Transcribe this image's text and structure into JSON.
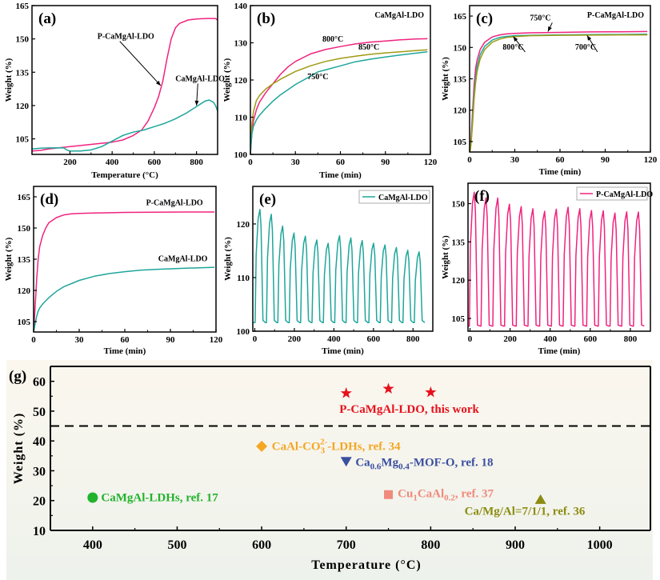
{
  "colors": {
    "pink": "#f0237e",
    "teal": "#1fa69b",
    "olive": "#a09a14",
    "red": "#e8101c",
    "orange": "#f4a624",
    "blue": "#3a4fa0",
    "salmon": "#f08a7c",
    "green": "#22b32c",
    "darkolive": "#8c8c10",
    "g_bg_top": "#fbf7ee",
    "g_bg_bottom": "#eef2ec"
  },
  "chart_data": [
    {
      "id": "a",
      "type": "line",
      "panel_label": "(a)",
      "xlabel": "Temperature (°C)",
      "ylabel": "Weight (%)",
      "xlim": [
        20,
        900
      ],
      "ylim": [
        98,
        165
      ],
      "xticks": [
        200,
        400,
        600,
        800
      ],
      "yticks": [
        105,
        120,
        135,
        150,
        165
      ],
      "series": [
        {
          "name": "P-CaMgAl-LDO",
          "color": "pink",
          "x": [
            20,
            60,
            100,
            200,
            300,
            400,
            450,
            500,
            540,
            570,
            600,
            620,
            640,
            660,
            680,
            700,
            720,
            760,
            800,
            850,
            890,
            900
          ],
          "y": [
            99.5,
            99.8,
            100.5,
            101.5,
            102.5,
            103.5,
            104.5,
            106.5,
            109,
            113,
            119,
            124,
            131,
            141,
            150,
            155,
            157,
            158.5,
            159,
            159.2,
            159.2,
            158.5
          ]
        },
        {
          "name": "CaMgAl-LDO",
          "color": "teal",
          "x": [
            20,
            60,
            100,
            170,
            185,
            200,
            250,
            300,
            350,
            400,
            450,
            500,
            550,
            600,
            650,
            700,
            750,
            800,
            840,
            860,
            880,
            890,
            900
          ],
          "y": [
            100.5,
            100.8,
            100.9,
            101,
            100,
            99.5,
            99.5,
            100,
            101.5,
            104,
            106.5,
            108,
            109,
            110.5,
            112,
            114,
            116.5,
            119.5,
            122,
            122.5,
            121.5,
            120,
            117.5
          ]
        }
      ],
      "annotations": [
        {
          "text": "P-CaMgAl-LDO",
          "x": 330,
          "y": 150,
          "arrow_to": [
            630,
            129
          ]
        },
        {
          "text": "CaMgAl-LDO",
          "x": 700,
          "y": 131,
          "arrow_to": [
            800,
            120
          ]
        }
      ]
    },
    {
      "id": "b",
      "type": "line",
      "panel_label": "(b)",
      "title": "CaMgAl-LDO",
      "xlabel": "Time (min)",
      "ylabel": "Weight (%)",
      "xlim": [
        0,
        120
      ],
      "ylim": [
        100,
        140
      ],
      "xticks": [
        0,
        30,
        60,
        90,
        120
      ],
      "yticks": [
        100,
        110,
        120,
        130,
        140
      ],
      "series": [
        {
          "name": "800°C",
          "color": "pink",
          "x": [
            0,
            0.5,
            1,
            2,
            4,
            6,
            10,
            15,
            20,
            25,
            30,
            40,
            50,
            60,
            70,
            80,
            90,
            100,
            110,
            118
          ],
          "y": [
            100,
            103,
            106,
            109,
            112,
            114,
            116.5,
            119,
            121.5,
            123.5,
            125,
            127,
            128.2,
            129,
            129.7,
            130.2,
            130.5,
            130.8,
            131,
            131.1
          ]
        },
        {
          "name": "850°C",
          "color": "olive",
          "x": [
            0,
            0.5,
            1,
            2,
            4,
            6,
            10,
            15,
            20,
            30,
            40,
            50,
            60,
            70,
            80,
            90,
            100,
            110,
            118
          ],
          "y": [
            100,
            104,
            108,
            111.5,
            114.5,
            115.8,
            117.5,
            119,
            120.2,
            122.3,
            123.8,
            125,
            125.8,
            126.4,
            126.9,
            127.3,
            127.6,
            127.9,
            128.1
          ]
        },
        {
          "name": "750°C",
          "color": "teal",
          "x": [
            0,
            0.5,
            1,
            2,
            4,
            6,
            10,
            15,
            20,
            30,
            40,
            45,
            50,
            60,
            70,
            80,
            90,
            100,
            110,
            118
          ],
          "y": [
            100,
            103,
            105.5,
            107.5,
            109.3,
            110.5,
            112.3,
            114.3,
            116,
            118.8,
            121,
            122.2,
            122.7,
            123.8,
            124.9,
            125.6,
            126.2,
            126.7,
            127.2,
            127.6
          ]
        }
      ],
      "annotations": [
        {
          "text": "800°C",
          "x": 48,
          "y": 130.3
        },
        {
          "text": "850°C",
          "x": 72,
          "y": 128.2
        },
        {
          "text": "750°C",
          "x": 38,
          "y": 120.2
        }
      ]
    },
    {
      "id": "c",
      "type": "line",
      "panel_label": "(c)",
      "title": "P-CaMgAl-LDO",
      "xlabel": "Time (min)",
      "ylabel": "Weight (%)",
      "xlim": [
        0,
        120
      ],
      "ylim": [
        100,
        170
      ],
      "xticks": [
        0,
        30,
        60,
        90,
        120
      ],
      "yticks": [
        105,
        120,
        135,
        150,
        165
      ],
      "series": [
        {
          "name": "750°C",
          "color": "pink",
          "x": [
            0,
            0.5,
            1,
            2,
            3,
            4,
            5,
            7,
            10,
            15,
            20,
            25,
            30,
            40,
            60,
            80,
            100,
            118
          ],
          "y": [
            100,
            102,
            107,
            120,
            132,
            140,
            144,
            149,
            152.5,
            155,
            156,
            156.5,
            156.7,
            157,
            157.2,
            157.4,
            157.5,
            157.6
          ]
        },
        {
          "name": "800°C",
          "color": "teal",
          "x": [
            0,
            0.5,
            1,
            2,
            3,
            4,
            5,
            7,
            10,
            15,
            20,
            25,
            30,
            40,
            60,
            80,
            100,
            118
          ],
          "y": [
            100,
            101.5,
            105,
            117,
            128,
            136,
            141,
            146.5,
            150.5,
            153.5,
            154.8,
            155.3,
            155.6,
            155.8,
            156,
            156.1,
            156.2,
            156.3
          ]
        },
        {
          "name": "700°C",
          "color": "olive",
          "x": [
            0,
            0.5,
            1,
            2,
            3,
            4,
            5,
            7,
            10,
            15,
            20,
            25,
            30,
            40,
            60,
            80,
            100,
            118
          ],
          "y": [
            100,
            101,
            104,
            114,
            125,
            133,
            138.5,
            144.5,
            149,
            152.5,
            154,
            154.8,
            155.2,
            155.6,
            155.8,
            155.9,
            156,
            156
          ]
        }
      ],
      "annotations": [
        {
          "text": "750°C",
          "x": 40,
          "y": 163,
          "arrow_to": [
            52,
            157.6
          ]
        },
        {
          "text": "800°C",
          "x": 22,
          "y": 149,
          "arrow_to": [
            29,
            155.2
          ]
        },
        {
          "text": "700°C",
          "x": 70,
          "y": 149,
          "arrow_to": [
            78,
            155.7
          ]
        }
      ]
    },
    {
      "id": "d",
      "type": "line",
      "panel_label": "(d)",
      "xlabel": "Time (min)",
      "ylabel": "Weight (%)",
      "xlim": [
        0,
        120
      ],
      "ylim": [
        100,
        170
      ],
      "xticks": [
        0,
        30,
        60,
        90,
        120
      ],
      "yticks": [
        105,
        120,
        135,
        150,
        165
      ],
      "series": [
        {
          "name": "P-CaMgAl-LDO",
          "color": "pink",
          "x": [
            0,
            1,
            2,
            3,
            4,
            6,
            8,
            10,
            15,
            20,
            25,
            30,
            40,
            60,
            80,
            100,
            119
          ],
          "y": [
            100,
            112,
            125,
            135,
            141,
            146.5,
            150,
            152.5,
            155,
            156.3,
            156.8,
            157,
            157.2,
            157.5,
            157.6,
            157.7,
            157.7
          ]
        },
        {
          "name": "CaMgAl-LDO",
          "color": "teal",
          "x": [
            0,
            1,
            2,
            3,
            4,
            6,
            8,
            10,
            15,
            20,
            30,
            40,
            50,
            60,
            70,
            80,
            90,
            100,
            110,
            119
          ],
          "y": [
            100,
            104,
            107.5,
            110,
            111.5,
            113.5,
            115,
            116.5,
            119.5,
            121.8,
            124.8,
            126.8,
            128.1,
            129,
            129.7,
            130.1,
            130.4,
            130.7,
            130.9,
            131.1
          ]
        }
      ],
      "annotations": [
        {
          "text": "P-CaMgAl-LDO",
          "x": 74,
          "y": 161
        },
        {
          "text": "CaMgAl-LDO",
          "x": 82,
          "y": 134
        }
      ]
    },
    {
      "id": "e",
      "type": "line",
      "panel_label": "(e)",
      "xlabel": "Time (min)",
      "ylabel": "Weight (%)",
      "xlim": [
        -10,
        900
      ],
      "ylim": [
        100,
        127
      ],
      "xticks": [
        0,
        200,
        400,
        600,
        800
      ],
      "yticks": [
        100,
        110,
        120
      ],
      "legend": {
        "position": "top-right",
        "entries": [
          "CaMgAl-LDO"
        ]
      },
      "cycle": {
        "period": 57.5,
        "start": 0,
        "base": 101.6,
        "peaks": [
          122.7,
          121.8,
          119.6,
          118.3,
          117.7,
          117.0,
          116.4,
          117.8,
          117.4,
          116.9,
          116.4,
          116.1,
          115.6,
          115.1,
          114.8
        ]
      },
      "series": [
        {
          "name": "CaMgAl-LDO",
          "color": "teal"
        }
      ]
    },
    {
      "id": "f",
      "type": "line",
      "panel_label": "(f)",
      "xlabel": "Time (min)",
      "ylabel": "Weight (%)",
      "xlim": [
        -10,
        900
      ],
      "ylim": [
        100,
        158
      ],
      "xticks": [
        0,
        200,
        400,
        600,
        800
      ],
      "yticks": [
        105,
        120,
        135,
        150
      ],
      "legend": {
        "position": "top-right",
        "entries": [
          "P-CaMgAl-LDO"
        ]
      },
      "cycle": {
        "period": 58.5,
        "start": -5,
        "base": 102,
        "peaks": [
          154.5,
          152.2,
          152.2,
          149.8,
          148.8,
          148.0,
          147.0,
          147.8,
          148.6,
          148.0,
          147.3,
          147.2,
          146.3,
          146.8,
          146.7
        ]
      },
      "series": [
        {
          "name": "P-CaMgAl-LDO",
          "color": "pink"
        }
      ]
    },
    {
      "id": "g",
      "type": "scatter",
      "panel_label": "(g)",
      "xlabel": "Temperature (°C)",
      "ylabel": "Weight (%)",
      "xlim": [
        350,
        1060
      ],
      "ylim": [
        10,
        65
      ],
      "xticks": [
        400,
        500,
        600,
        700,
        800,
        900,
        1000
      ],
      "yticks": [
        10,
        20,
        30,
        40,
        50,
        60
      ],
      "reference_line": {
        "y": 45,
        "style": "dashed"
      },
      "points": [
        {
          "group": "P-CaMgAl-LDO, this work",
          "marker": "star",
          "color": "red",
          "x": 700,
          "y": 56
        },
        {
          "group": "P-CaMgAl-LDO, this work",
          "marker": "star",
          "color": "red",
          "x": 750,
          "y": 57.5
        },
        {
          "group": "P-CaMgAl-LDO, this work",
          "marker": "star",
          "color": "red",
          "x": 800,
          "y": 56.3
        },
        {
          "group": "CaAl-CO3 2- -LDHs, ref. 34",
          "marker": "diamond",
          "color": "orange",
          "x": 600,
          "y": 38.2
        },
        {
          "group": "Ca0.6Mg0.4-MOF-O, ref. 18",
          "marker": "triangle-down",
          "color": "blue",
          "x": 700,
          "y": 33
        },
        {
          "group": "Cu1CaAl0.2, ref. 37",
          "marker": "square",
          "color": "salmon",
          "x": 750,
          "y": 22
        },
        {
          "group": "Ca/Mg/Al=7/1/1, ref. 36",
          "marker": "triangle-up",
          "color": "darkolive",
          "x": 930,
          "y": 20.5
        },
        {
          "group": "CaMgAl-LDHs, ref. 17",
          "marker": "circle",
          "color": "green",
          "x": 400,
          "y": 21
        }
      ],
      "labels": [
        {
          "color": "red",
          "x": 692,
          "y": 49.5,
          "parts": [
            {
              "t": "P-CaMgAl-LDO, this work"
            }
          ]
        },
        {
          "color": "orange",
          "x": 612,
          "y": 37,
          "parts": [
            {
              "t": "CaAl-CO"
            },
            {
              "t": "3",
              "sub": true
            },
            {
              "t": "2-",
              "sup": true
            },
            {
              "t": "-LDHs, ref. 34"
            }
          ]
        },
        {
          "color": "blue",
          "x": 711,
          "y": 31.6,
          "parts": [
            {
              "t": "Ca"
            },
            {
              "t": "0.6",
              "sub": true
            },
            {
              "t": "Mg"
            },
            {
              "t": "0.4",
              "sub": true
            },
            {
              "t": "-MOF-O, ref. 18"
            }
          ]
        },
        {
          "color": "salmon",
          "x": 761,
          "y": 21.2,
          "parts": [
            {
              "t": "Cu"
            },
            {
              "t": "1",
              "sub": true
            },
            {
              "t": "CaAl"
            },
            {
              "t": "0.2",
              "sub": true
            },
            {
              "t": ", ref. 37"
            }
          ]
        },
        {
          "color": "darkolive",
          "x": 840,
          "y": 15.2,
          "parts": [
            {
              "t": "Ca/Mg/Al=7/1/1, ref. 36"
            }
          ]
        },
        {
          "color": "green",
          "x": 410,
          "y": 19.8,
          "parts": [
            {
              "t": "CaMgAl-LDHs, ref. 17"
            }
          ]
        }
      ]
    }
  ]
}
